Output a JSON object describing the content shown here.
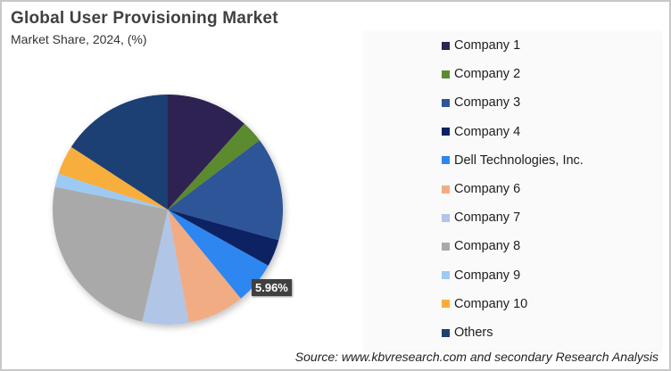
{
  "header": {
    "title": "Global User Provisioning Market",
    "subtitle": "Market Share, 2024, (%)"
  },
  "source": "Source: www.kbvresearch.com and secondary Research Analysis",
  "data_label": "5.96%",
  "legend": [
    {
      "label": "Company 1",
      "color": "#2f2452"
    },
    {
      "label": "Company 2",
      "color": "#5b8a2f"
    },
    {
      "label": "Company 3",
      "color": "#2f5597"
    },
    {
      "label": "Company 4",
      "color": "#0b2262"
    },
    {
      "label": "Dell Technologies, Inc.",
      "color": "#2f86f0"
    },
    {
      "label": "Company 6",
      "color": "#f2ac84"
    },
    {
      "label": "Company 7",
      "color": "#b1c5e6"
    },
    {
      "label": "Company 8",
      "color": "#a9a9a9"
    },
    {
      "label": "Company 9",
      "color": "#9dcaf2"
    },
    {
      "label": "Company 10",
      "color": "#f8ae3c"
    },
    {
      "label": "Others",
      "color": "#1f3f73"
    }
  ],
  "chart_data": {
    "type": "pie",
    "title": "Global User Provisioning Market",
    "subtitle": "Market Share, 2024, (%)",
    "categories": [
      "Company 1",
      "Company 2",
      "Company 3",
      "Company 4",
      "Dell Technologies, Inc.",
      "Company 6",
      "Company 7",
      "Company 8",
      "Company 9",
      "Company 10",
      "Others"
    ],
    "values": [
      11.6,
      3.1,
      14.6,
      3.8,
      5.96,
      8.0,
      6.5,
      24.6,
      1.9,
      4.1,
      15.84
    ],
    "annotations": [
      {
        "category": "Dell Technologies, Inc.",
        "text": "5.96%"
      }
    ],
    "legend_position": "right",
    "start_angle_deg": 0,
    "direction": "clockwise"
  }
}
